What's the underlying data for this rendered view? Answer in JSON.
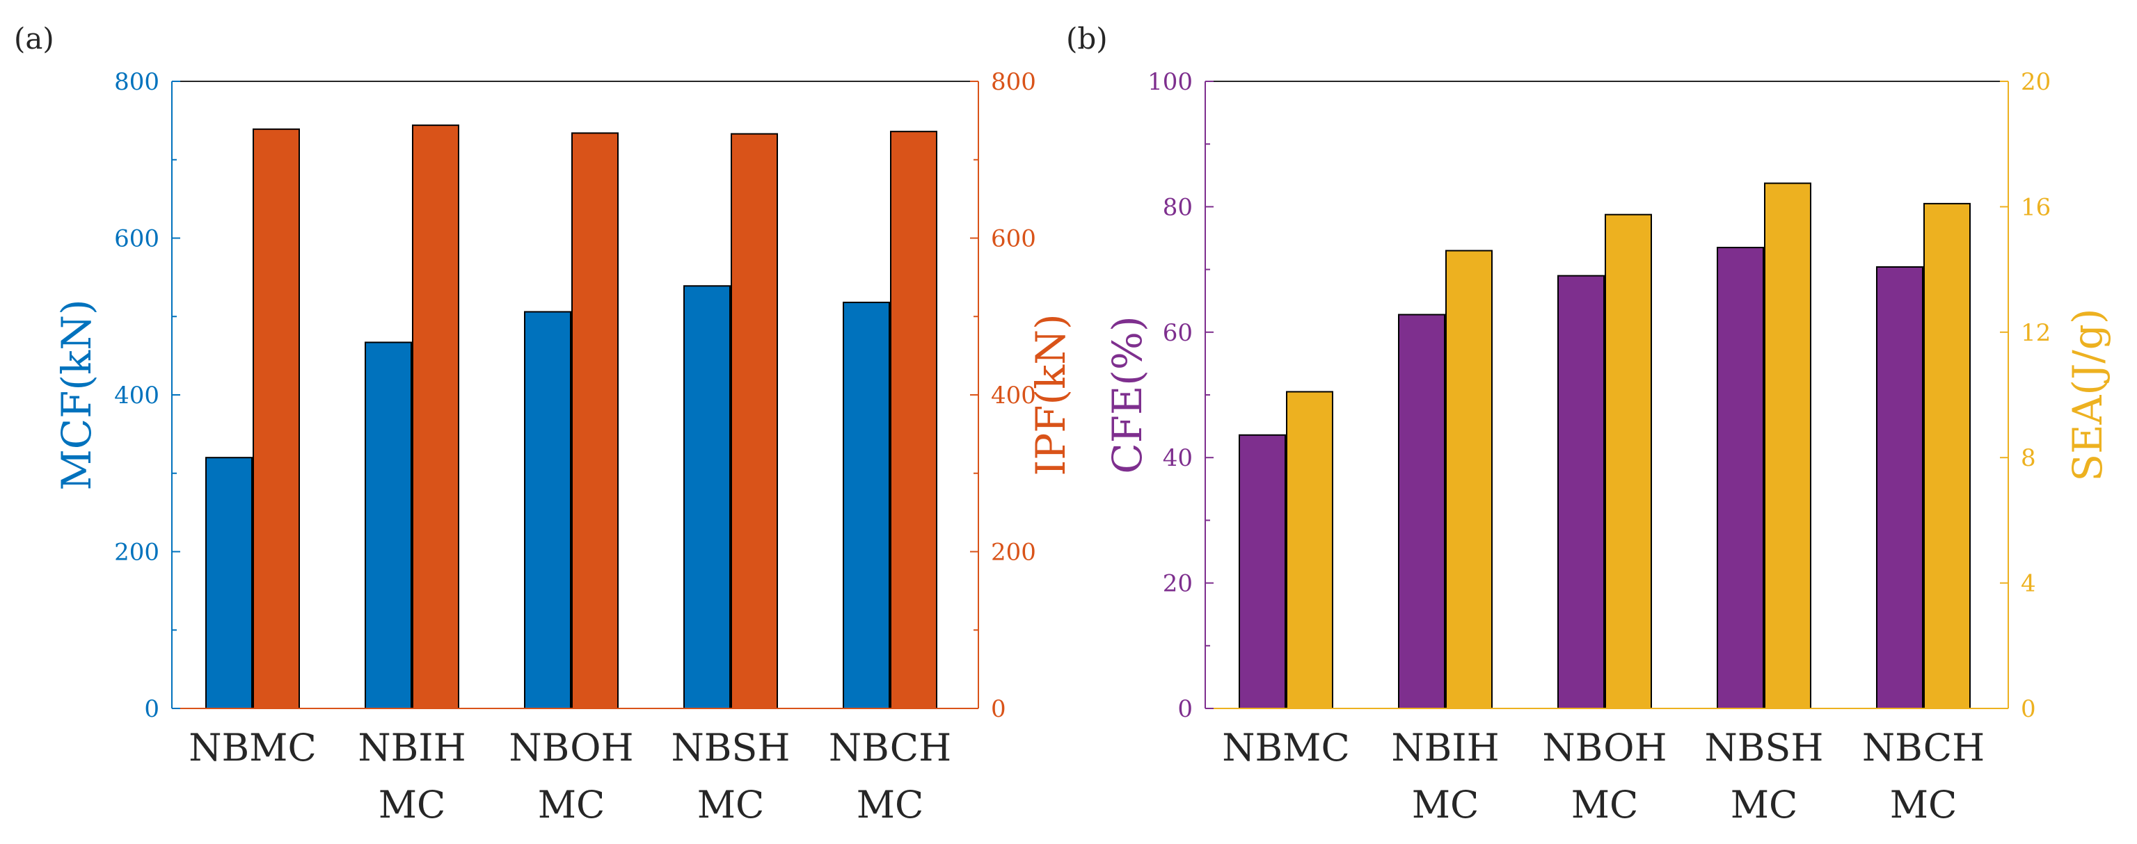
{
  "chart_data": [
    {
      "type": "bar",
      "panel_label": "(a)",
      "categories": [
        [
          "NBMC"
        ],
        [
          "NBIH",
          "MC"
        ],
        [
          "NBOH",
          "MC"
        ],
        [
          "NBSH",
          "MC"
        ],
        [
          "NBCH",
          "MC"
        ]
      ],
      "series": [
        {
          "name": "MCF(kN)",
          "axis": "left",
          "color": "#0072BD",
          "values": [
            320,
            467,
            506,
            539,
            518
          ]
        },
        {
          "name": "IPF(kN)",
          "axis": "right",
          "color": "#D95319",
          "values": [
            739,
            744,
            734,
            733,
            736
          ]
        }
      ],
      "left_axis": {
        "label": "MCF(kN)",
        "color": "#0072BD",
        "ylim": [
          0,
          800
        ],
        "ticks": [
          0,
          200,
          400,
          600,
          800
        ],
        "tick_labels": [
          "0",
          "200",
          "400",
          "600",
          "800"
        ]
      },
      "right_axis": {
        "label": "IPF(kN)",
        "color": "#D95319",
        "ylim": [
          0,
          800
        ],
        "ticks": [
          0,
          200,
          400,
          600,
          800
        ],
        "tick_labels": [
          "0",
          "200",
          "400",
          "600",
          "800"
        ]
      }
    },
    {
      "type": "bar",
      "panel_label": "(b)",
      "categories": [
        [
          "NBMC"
        ],
        [
          "NBIH",
          "MC"
        ],
        [
          "NBOH",
          "MC"
        ],
        [
          "NBSH",
          "MC"
        ],
        [
          "NBCH",
          "MC"
        ]
      ],
      "series": [
        {
          "name": "CFE(%)",
          "axis": "left",
          "color": "#7E2F8E",
          "values": [
            43.6,
            62.8,
            69.0,
            73.5,
            70.4
          ]
        },
        {
          "name": "SEA(J/g)",
          "axis": "right",
          "color": "#EDB120",
          "values": [
            10.1,
            14.6,
            15.75,
            16.75,
            16.1
          ]
        }
      ],
      "left_axis": {
        "label": "CFE(%)",
        "color": "#7E2F8E",
        "ylim": [
          0,
          100
        ],
        "ticks": [
          0,
          20,
          40,
          60,
          80,
          100
        ],
        "tick_labels": [
          "0",
          "20",
          "40",
          "60",
          "80",
          "100"
        ]
      },
      "right_axis": {
        "label": "SEA(J/g)",
        "color": "#EDB120",
        "ylim": [
          0,
          20
        ],
        "ticks": [
          0,
          4,
          8,
          12,
          16,
          20
        ],
        "tick_labels": [
          "0",
          "4",
          "8",
          "12",
          "16",
          "20"
        ]
      }
    }
  ]
}
